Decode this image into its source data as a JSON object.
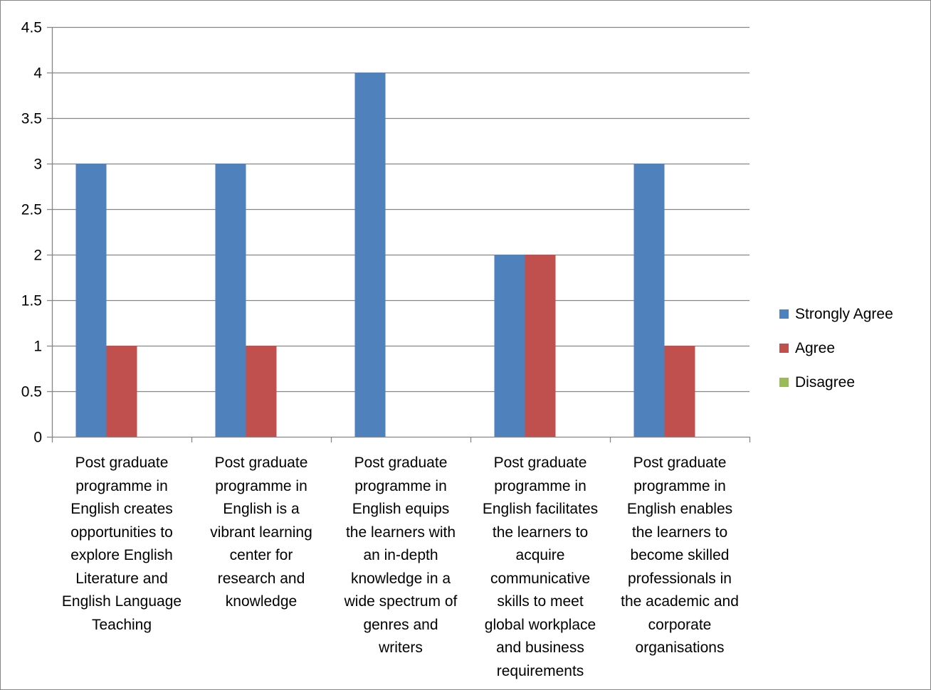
{
  "chart_data": {
    "type": "bar",
    "title": "",
    "xlabel": "",
    "ylabel": "",
    "ylim": [
      0,
      4.5
    ],
    "yticks": [
      "0",
      "0.5",
      "1",
      "1.5",
      "2",
      "2.5",
      "3",
      "3.5",
      "4",
      "4.5"
    ],
    "grid": true,
    "legend_position": "right",
    "categories": [
      "Post graduate programme in English creates opportunities to explore English Literature and English Language Teaching",
      "Post graduate programme in English is a vibrant learning center for research and knowledge",
      "Post graduate programme in English equips the learners with an in-depth knowledge in a wide spectrum of genres and writers",
      "Post graduate programme in English facilitates the learners to acquire communicative skills to meet global workplace and business requirements",
      "Post graduate programme in English enables the learners to become skilled professionals in the academic and corporate organisations"
    ],
    "category_lines": [
      [
        "Post graduate",
        "programme in",
        "English creates",
        "opportunities to",
        "explore English",
        "Literature and",
        "English Language",
        "Teaching"
      ],
      [
        "Post graduate",
        "programme in",
        "English is a",
        "vibrant learning",
        "center for",
        "research and",
        "knowledge"
      ],
      [
        "Post graduate",
        "programme in",
        "English equips",
        "the learners with",
        "an in-depth",
        "knowledge in a",
        "wide spectrum of",
        "genres and",
        "writers"
      ],
      [
        "Post graduate",
        "programme in",
        "English facilitates",
        "the learners to",
        "acquire",
        "communicative",
        "skills to meet",
        "global workplace",
        "and business",
        "requirements"
      ],
      [
        "Post graduate",
        "programme in",
        "English enables",
        "the learners to",
        "become skilled",
        "professionals in",
        "the academic and",
        "corporate",
        "organisations"
      ]
    ],
    "series": [
      {
        "name": "Strongly Agree",
        "color": "#4F81BD",
        "values": [
          3,
          3,
          4,
          2,
          3
        ]
      },
      {
        "name": "Agree",
        "color": "#C0504D",
        "values": [
          1,
          1,
          0,
          2,
          1
        ]
      },
      {
        "name": "Disagree",
        "color": "#9BBB59",
        "values": [
          0,
          0,
          0,
          0,
          0
        ]
      }
    ]
  }
}
